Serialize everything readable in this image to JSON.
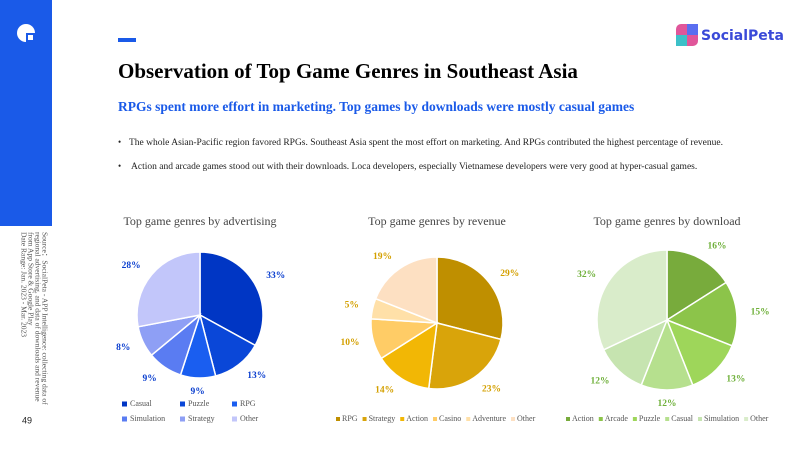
{
  "header": {
    "title": "Observation of Top Game Genres in Southeast Asia",
    "subtitle": "RPGs spent more effort in marketing. Top games by downloads were mostly casual games",
    "bullets": [
      "The whole Asian-Pacific region favored RPGs. Southeast Asia spent the most effort on marketing. And RPGs contributed the highest percentage of revenue.",
      "Action and arcade games stood out with their downloads. Loca developers, especially Vietnamese developers were very good at hyper-casual games."
    ],
    "logo": "SocialPeta",
    "page_number": "49",
    "source": [
      "Source：SocialPeta - APP Intelligence: collecting data of",
      "regional advertising, and data of downloads and revenue",
      "from App Store & Google Play",
      "Date Range: Jan. 2023 - Mar. 2023"
    ]
  },
  "chart_data": [
    {
      "type": "pie",
      "title": "Top game genres by advertising",
      "categories": [
        "Casual",
        "Puzzle",
        "RPG",
        "Simulation",
        "Strategy",
        "Other"
      ],
      "values": [
        33,
        13,
        9,
        9,
        8,
        28
      ],
      "value_labels": [
        "33%",
        "13%",
        "9%",
        "9%",
        "8%",
        "28%"
      ],
      "colors": [
        "#0036c4",
        "#0a47d8",
        "#1a5ef0",
        "#5a7cf2",
        "#8e9ff5",
        "#c2c6fa"
      ],
      "label_color": "#0b3fcf"
    },
    {
      "type": "pie",
      "title": "Top game genres by revenue",
      "categories": [
        "RPG",
        "Strategy",
        "Action",
        "Casino",
        "Adventure",
        "Other"
      ],
      "values": [
        29,
        23,
        14,
        10,
        5,
        19
      ],
      "value_labels": [
        "29%",
        "23%",
        "14%",
        "10%",
        "5%",
        "19%"
      ],
      "colors": [
        "#bf8f00",
        "#d9a40a",
        "#f2b705",
        "#ffcc66",
        "#ffe0a8",
        "#fde0c2"
      ],
      "label_color": "#d4a000"
    },
    {
      "type": "pie",
      "title": "Top game genres by download",
      "categories": [
        "Action",
        "Arcade",
        "Puzzle",
        "Casual",
        "Simulation",
        "Other"
      ],
      "values": [
        16,
        15,
        13,
        12,
        12,
        32
      ],
      "value_labels": [
        "16%",
        "15%",
        "13%",
        "12%",
        "12%",
        "32%"
      ],
      "colors": [
        "#78ab3c",
        "#8cc44a",
        "#9ed65a",
        "#b6e08e",
        "#c6e4b0",
        "#d9ecca"
      ],
      "label_color": "#6fb03a"
    }
  ]
}
